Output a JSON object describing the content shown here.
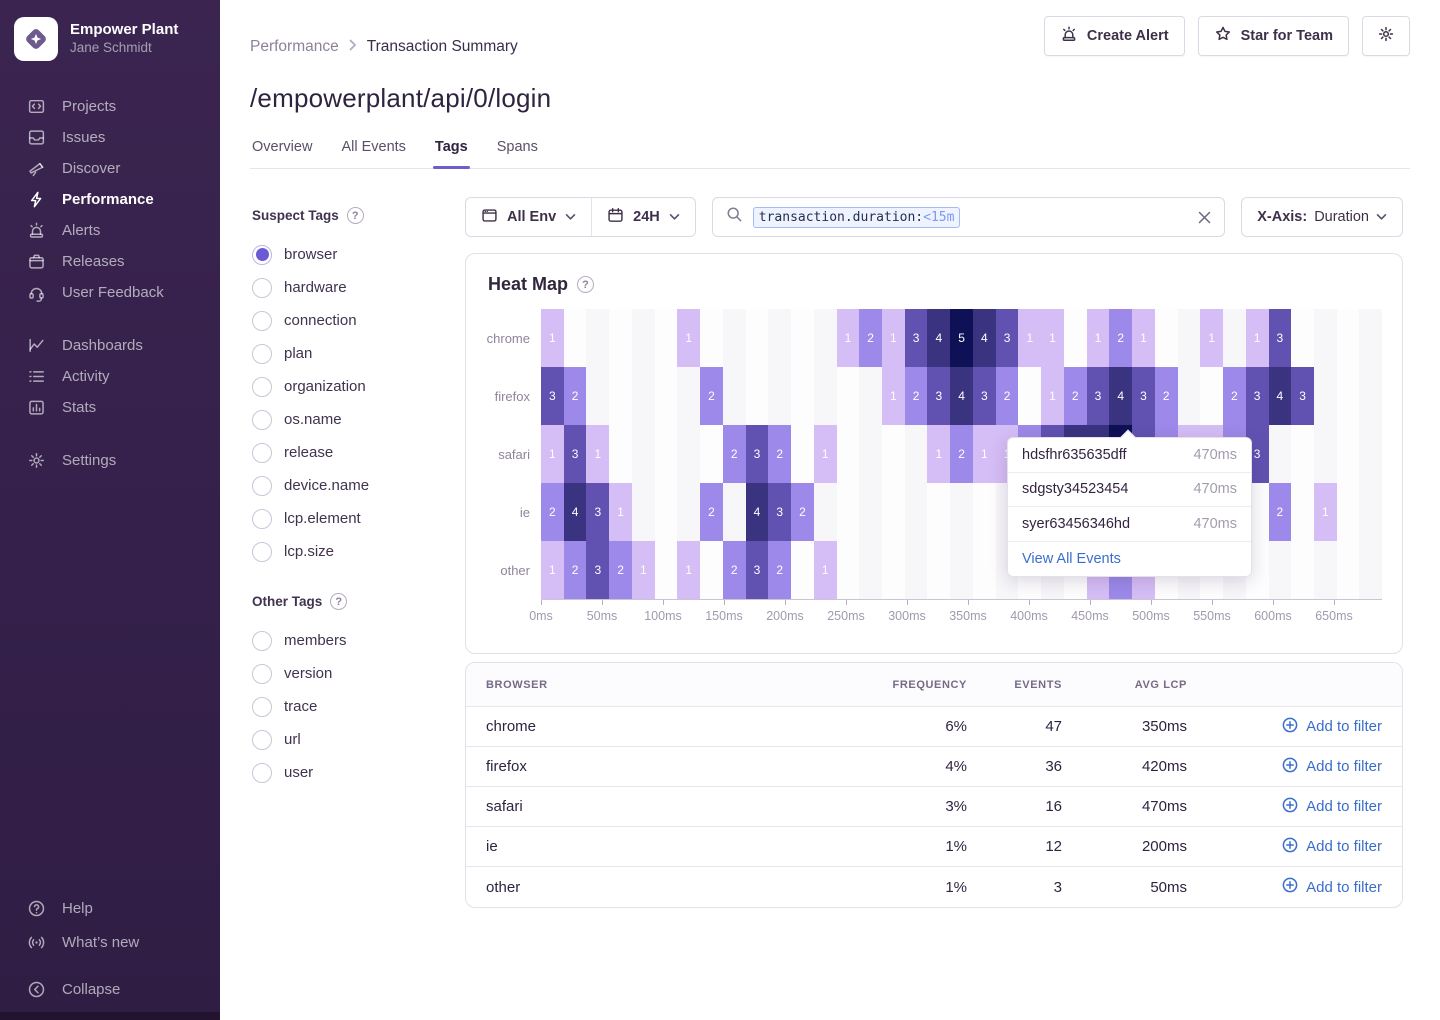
{
  "colors": {
    "accent": "#6c5fc7",
    "link": "#3b6ecc",
    "sidebar_bg": "#38234d"
  },
  "sidebar": {
    "org": "Empower Plant",
    "user": "Jane Schmidt",
    "active": "Performance",
    "primary": [
      "Projects",
      "Issues",
      "Discover",
      "Performance",
      "Alerts",
      "Releases",
      "User Feedback"
    ],
    "secondary": [
      "Dashboards",
      "Activity",
      "Stats"
    ],
    "tertiary": [
      "Settings"
    ],
    "bottom": [
      "Help",
      "What’s new",
      "Collapse"
    ]
  },
  "header": {
    "breadcrumb": [
      "Performance",
      "Transaction Summary"
    ],
    "title": "/empowerplant/api/0/login",
    "tabs": [
      "Overview",
      "All Events",
      "Tags",
      "Spans"
    ],
    "active_tab": "Tags",
    "actions": {
      "create_alert": "Create Alert",
      "star_for_team": "Star for Team"
    }
  },
  "filters": {
    "env_label": "All Env",
    "range_label": "24H",
    "search_token_key": "transaction.duration:",
    "search_token_value": "<15m",
    "xaxis_label": "X-Axis:",
    "xaxis_value": "Duration"
  },
  "tags_panel": {
    "suspect_title": "Suspect Tags",
    "suspect": [
      "browser",
      "hardware",
      "connection",
      "plan",
      "organization",
      "os.name",
      "release",
      "device.name",
      "lcp.element",
      "lcp.size"
    ],
    "selected": "browser",
    "other_title": "Other Tags",
    "other": [
      "members",
      "version",
      "trace",
      "url",
      "user"
    ]
  },
  "heatmap": {
    "title": "Heat Map",
    "columns": 37,
    "tick_spacing_px": 61,
    "bg_even": "#f7f6f9",
    "bg_odd": "#fdfdfe",
    "palette": {
      "1": "#d5bdf5",
      "2": "#9d89e9",
      "3": "#6152b2",
      "4": "#393380",
      "5": "#0e1156"
    },
    "x_ticks": [
      "0ms",
      "50ms",
      "100ms",
      "150ms",
      "200ms",
      "250ms",
      "300ms",
      "350ms",
      "400ms",
      "450ms",
      "500ms",
      "550ms",
      "600ms",
      "650ms"
    ],
    "rows": [
      {
        "label": "chrome",
        "cells": [
          [
            0,
            1
          ],
          [
            6,
            1
          ],
          [
            13,
            1
          ],
          [
            14,
            2
          ],
          [
            15,
            1
          ],
          [
            16,
            3
          ],
          [
            17,
            4
          ],
          [
            18,
            5
          ],
          [
            19,
            4
          ],
          [
            20,
            3
          ],
          [
            21,
            1
          ],
          [
            22,
            1
          ],
          [
            24,
            1
          ],
          [
            25,
            2
          ],
          [
            26,
            1
          ],
          [
            29,
            1
          ],
          [
            31,
            1
          ],
          [
            32,
            3
          ]
        ]
      },
      {
        "label": "firefox",
        "cells": [
          [
            0,
            3
          ],
          [
            1,
            2
          ],
          [
            7,
            2
          ],
          [
            15,
            1
          ],
          [
            16,
            2
          ],
          [
            17,
            3
          ],
          [
            18,
            4
          ],
          [
            19,
            3
          ],
          [
            20,
            2
          ],
          [
            22,
            1
          ],
          [
            23,
            2
          ],
          [
            24,
            3
          ],
          [
            25,
            4
          ],
          [
            26,
            3
          ],
          [
            27,
            2
          ],
          [
            30,
            2
          ],
          [
            31,
            3
          ],
          [
            32,
            4
          ],
          [
            33,
            3
          ]
        ]
      },
      {
        "label": "safari",
        "cells": [
          [
            0,
            1
          ],
          [
            1,
            3
          ],
          [
            2,
            1
          ],
          [
            8,
            2
          ],
          [
            9,
            3
          ],
          [
            10,
            2
          ],
          [
            12,
            1
          ],
          [
            17,
            1
          ],
          [
            18,
            2
          ],
          [
            19,
            1
          ],
          [
            20,
            1
          ],
          [
            21,
            2
          ],
          [
            22,
            3
          ],
          [
            23,
            4
          ],
          [
            24,
            4
          ],
          [
            25,
            5
          ],
          [
            26,
            3
          ],
          [
            27,
            2
          ],
          [
            28,
            1
          ],
          [
            29,
            1
          ],
          [
            30,
            2
          ],
          [
            31,
            3
          ]
        ]
      },
      {
        "label": "ie",
        "cells": [
          [
            0,
            2
          ],
          [
            1,
            4
          ],
          [
            2,
            3
          ],
          [
            3,
            1
          ],
          [
            7,
            2
          ],
          [
            9,
            4
          ],
          [
            10,
            3
          ],
          [
            11,
            2
          ],
          [
            32,
            2
          ],
          [
            34,
            1
          ]
        ]
      },
      {
        "label": "other",
        "cells": [
          [
            0,
            1
          ],
          [
            1,
            2
          ],
          [
            2,
            3
          ],
          [
            3,
            2
          ],
          [
            4,
            1
          ],
          [
            6,
            1
          ],
          [
            8,
            2
          ],
          [
            9,
            3
          ],
          [
            10,
            2
          ],
          [
            12,
            1
          ],
          [
            24,
            1
          ],
          [
            25,
            2
          ],
          [
            26,
            1
          ]
        ]
      }
    ]
  },
  "tooltip": {
    "items": [
      {
        "id": "hdsfhr635635dff",
        "value": "470ms"
      },
      {
        "id": "sdgsty34523454",
        "value": "470ms"
      },
      {
        "id": "syer63456346hd",
        "value": "470ms"
      }
    ],
    "action": "View All Events"
  },
  "table": {
    "headers": [
      "BROWSER",
      "FREQUENCY",
      "EVENTS",
      "AVG LCP"
    ],
    "action_label": "Add to filter",
    "rows": [
      {
        "browser": "chrome",
        "frequency": "6%",
        "events": "47",
        "avg_lcp": "350ms"
      },
      {
        "browser": "firefox",
        "frequency": "4%",
        "events": "36",
        "avg_lcp": "420ms"
      },
      {
        "browser": "safari",
        "frequency": "3%",
        "events": "16",
        "avg_lcp": "470ms"
      },
      {
        "browser": "ie",
        "frequency": "1%",
        "events": "12",
        "avg_lcp": "200ms"
      },
      {
        "browser": "other",
        "frequency": "1%",
        "events": "3",
        "avg_lcp": "50ms"
      }
    ]
  }
}
